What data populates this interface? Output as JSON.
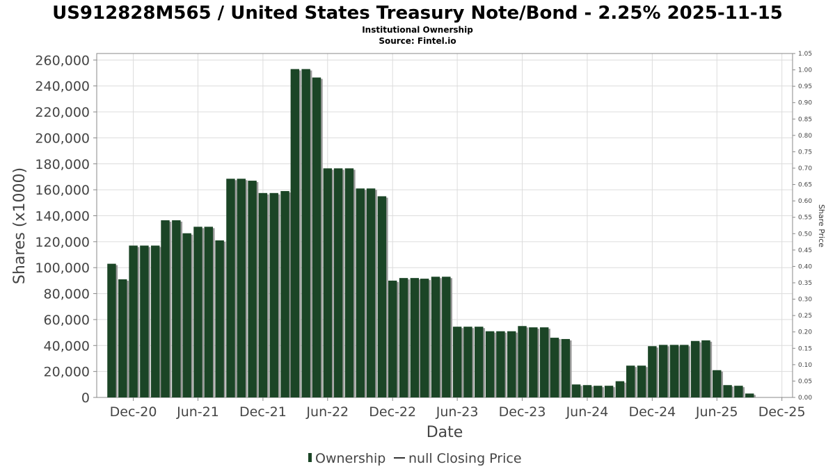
{
  "title": "US912828M565 / United States Treasury Note/Bond - 2.25% 2025-11-15",
  "subtitle": "Institutional Ownership",
  "source": "Source: Fintel.io",
  "colors": {
    "bar": "#1b4526",
    "bar_shadow": "#9a9a9a",
    "grid": "#dcdcdc",
    "axis": "#888888"
  },
  "chart_data": {
    "type": "bar",
    "title": "US912828M565 / United States Treasury Note/Bond - 2.25% 2025-11-15",
    "xlabel": "Date",
    "ylabel": "Shares (x1000)",
    "y2label": "Share Price",
    "ylim": [
      0,
      265000
    ],
    "y2lim": [
      0,
      1.05
    ],
    "xlim": [
      "2020-08-20",
      "2025-12-31"
    ],
    "grid": true,
    "legend_position": "bottom",
    "y_ticks": [
      "0",
      "20,000",
      "40,000",
      "60,000",
      "80,000",
      "100,000",
      "120,000",
      "140,000",
      "160,000",
      "180,000",
      "200,000",
      "220,000",
      "240,000",
      "260,000"
    ],
    "y2_ticks": [
      "0.00",
      "0.05",
      "0.10",
      "0.15",
      "0.20",
      "0.25",
      "0.30",
      "0.35",
      "0.40",
      "0.45",
      "0.50",
      "0.55",
      "0.60",
      "0.65",
      "0.70",
      "0.75",
      "0.80",
      "0.85",
      "0.90",
      "0.95",
      "1.00",
      "1.05"
    ],
    "x_ticks": [
      {
        "label": "Dec-20",
        "date": "2020-12-01"
      },
      {
        "label": "Jun-21",
        "date": "2021-06-01"
      },
      {
        "label": "Dec-21",
        "date": "2021-12-01"
      },
      {
        "label": "Jun-22",
        "date": "2022-06-01"
      },
      {
        "label": "Dec-22",
        "date": "2022-12-01"
      },
      {
        "label": "Jun-23",
        "date": "2023-06-01"
      },
      {
        "label": "Dec-23",
        "date": "2023-12-01"
      },
      {
        "label": "Jun-24",
        "date": "2024-06-01"
      },
      {
        "label": "Dec-24",
        "date": "2024-12-01"
      },
      {
        "label": "Jun-25",
        "date": "2025-06-01"
      },
      {
        "label": "Dec-25",
        "date": "2025-12-01"
      }
    ],
    "series": [
      {
        "name": "Ownership",
        "points": [
          {
            "date": "2020-10-01",
            "value": 103000
          },
          {
            "date": "2020-11-01",
            "value": 91000
          },
          {
            "date": "2020-12-01",
            "value": 117000
          },
          {
            "date": "2021-01-01",
            "value": 117000
          },
          {
            "date": "2021-02-01",
            "value": 117000
          },
          {
            "date": "2021-03-01",
            "value": 136500
          },
          {
            "date": "2021-04-01",
            "value": 136500
          },
          {
            "date": "2021-05-01",
            "value": 126500
          },
          {
            "date": "2021-06-01",
            "value": 131500
          },
          {
            "date": "2021-07-01",
            "value": 131500
          },
          {
            "date": "2021-08-01",
            "value": 121000
          },
          {
            "date": "2021-09-01",
            "value": 168500
          },
          {
            "date": "2021-10-01",
            "value": 168500
          },
          {
            "date": "2021-11-01",
            "value": 167000
          },
          {
            "date": "2021-12-01",
            "value": 157500
          },
          {
            "date": "2022-01-01",
            "value": 157500
          },
          {
            "date": "2022-02-01",
            "value": 159000
          },
          {
            "date": "2022-03-01",
            "value": 253000
          },
          {
            "date": "2022-04-01",
            "value": 253000
          },
          {
            "date": "2022-05-01",
            "value": 246500
          },
          {
            "date": "2022-06-01",
            "value": 176500
          },
          {
            "date": "2022-07-01",
            "value": 176500
          },
          {
            "date": "2022-08-01",
            "value": 176500
          },
          {
            "date": "2022-09-01",
            "value": 161000
          },
          {
            "date": "2022-10-01",
            "value": 161000
          },
          {
            "date": "2022-11-01",
            "value": 155000
          },
          {
            "date": "2022-12-01",
            "value": 90000
          },
          {
            "date": "2023-01-01",
            "value": 92000
          },
          {
            "date": "2023-02-01",
            "value": 92000
          },
          {
            "date": "2023-03-01",
            "value": 91500
          },
          {
            "date": "2023-04-01",
            "value": 93000
          },
          {
            "date": "2023-05-01",
            "value": 93000
          },
          {
            "date": "2023-06-01",
            "value": 54500
          },
          {
            "date": "2023-07-01",
            "value": 54500
          },
          {
            "date": "2023-08-01",
            "value": 54500
          },
          {
            "date": "2023-09-01",
            "value": 51000
          },
          {
            "date": "2023-10-01",
            "value": 51000
          },
          {
            "date": "2023-11-01",
            "value": 51000
          },
          {
            "date": "2023-12-01",
            "value": 55000
          },
          {
            "date": "2024-01-01",
            "value": 54000
          },
          {
            "date": "2024-02-01",
            "value": 54000
          },
          {
            "date": "2024-03-01",
            "value": 46000
          },
          {
            "date": "2024-04-01",
            "value": 45000
          },
          {
            "date": "2024-05-01",
            "value": 10000
          },
          {
            "date": "2024-06-01",
            "value": 9500
          },
          {
            "date": "2024-07-01",
            "value": 9000
          },
          {
            "date": "2024-08-01",
            "value": 9000
          },
          {
            "date": "2024-09-01",
            "value": 12500
          },
          {
            "date": "2024-10-01",
            "value": 24500
          },
          {
            "date": "2024-11-01",
            "value": 24500
          },
          {
            "date": "2024-12-01",
            "value": 39500
          },
          {
            "date": "2025-01-01",
            "value": 40500
          },
          {
            "date": "2025-02-01",
            "value": 40500
          },
          {
            "date": "2025-03-01",
            "value": 40500
          },
          {
            "date": "2025-04-01",
            "value": 43500
          },
          {
            "date": "2025-05-01",
            "value": 44000
          },
          {
            "date": "2025-06-01",
            "value": 21000
          },
          {
            "date": "2025-07-01",
            "value": 9500
          },
          {
            "date": "2025-08-01",
            "value": 9000
          },
          {
            "date": "2025-09-01",
            "value": 3000
          }
        ]
      },
      {
        "name": "null Closing Price",
        "points": []
      }
    ]
  },
  "legend": {
    "ownership": "Ownership",
    "price": "null Closing Price"
  }
}
